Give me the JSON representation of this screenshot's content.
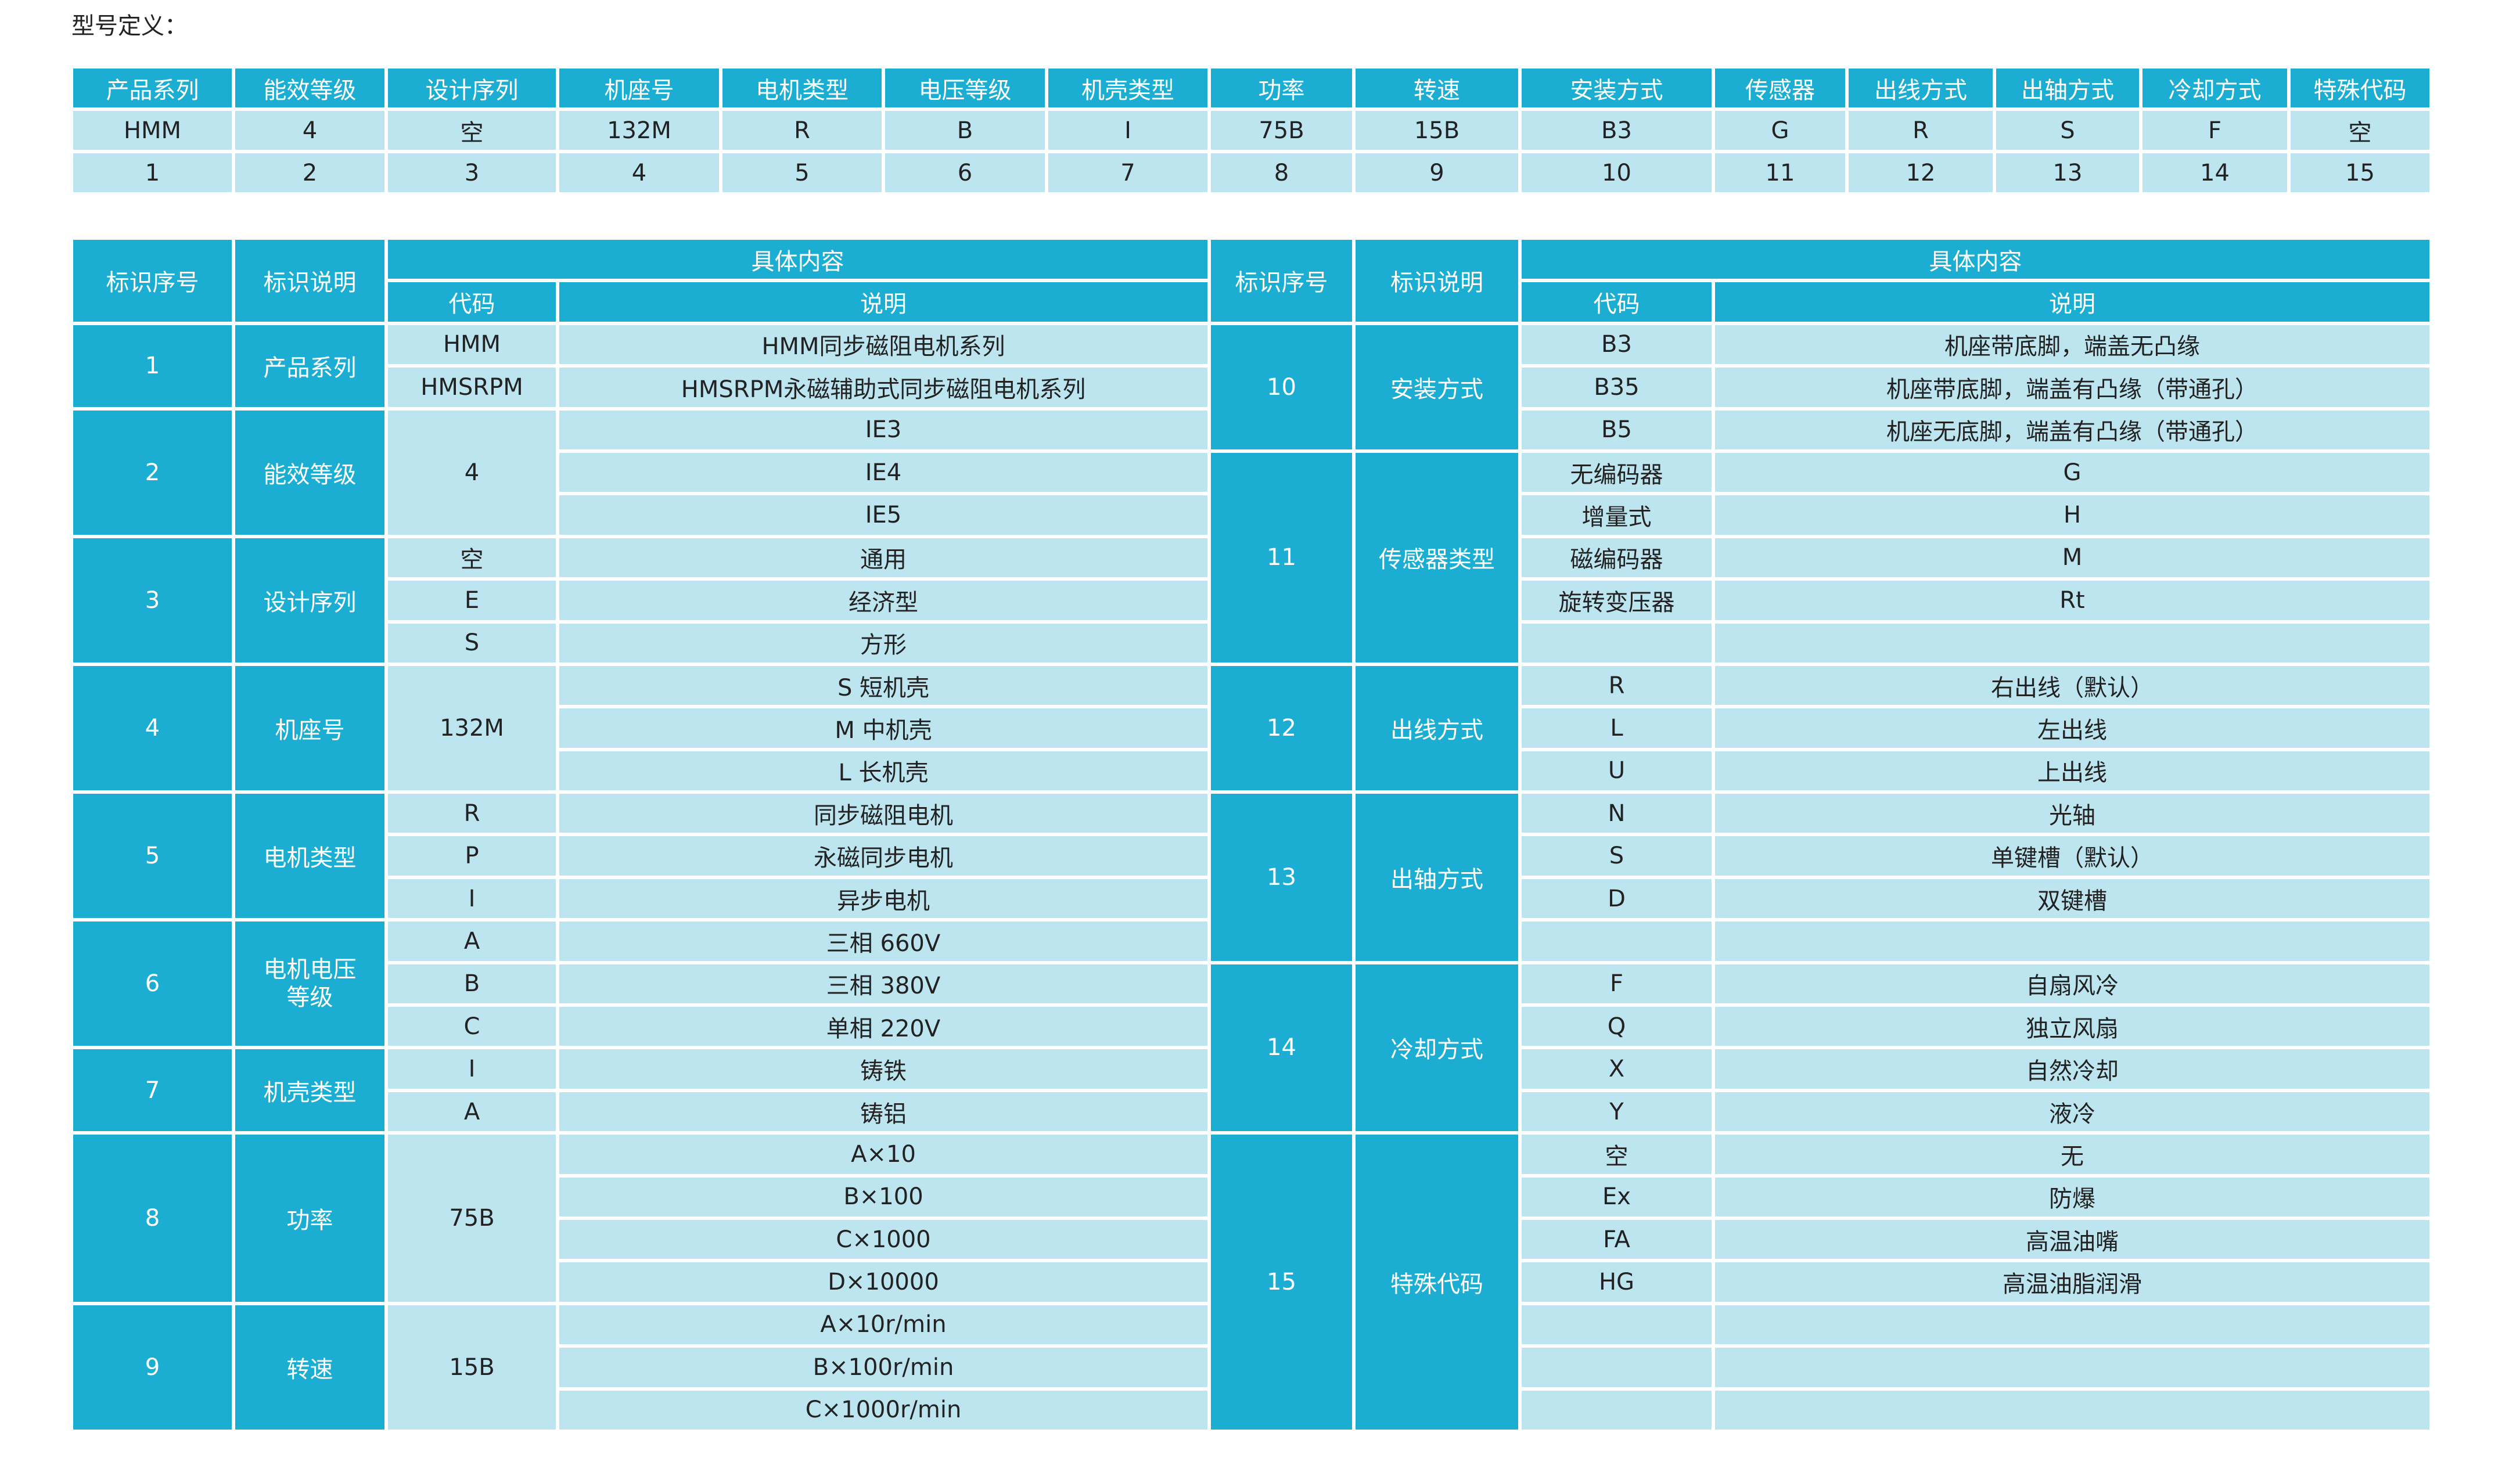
{
  "title": "型号定义：",
  "colors": {
    "header_bg": "#1baed2",
    "cell_bg": "#bde5f0",
    "header_text": "#ffffff"
  },
  "model": {
    "headers": [
      "产品系列",
      "能效等级",
      "设计序列",
      "机座号",
      "电机类型",
      "电压等级",
      "机壳类型",
      "功率",
      "转速",
      "安装方式",
      "传感器",
      "出线方式",
      "出轴方式",
      "冷却方式",
      "特殊代码"
    ],
    "example": [
      "HMM",
      "4",
      "空",
      "132M",
      "R",
      "B",
      "I",
      "75B",
      "15B",
      "B3",
      "G",
      "R",
      "S",
      "F",
      "空"
    ],
    "positions": [
      "1",
      "2",
      "3",
      "4",
      "5",
      "6",
      "7",
      "8",
      "9",
      "10",
      "11",
      "12",
      "13",
      "14",
      "15"
    ]
  },
  "defs": {
    "hdr": {
      "seq": "标识序号",
      "desc": "标识说明",
      "content": "具体内容",
      "code": "代码",
      "expl": "说明"
    },
    "left": [
      {
        "seq": "1",
        "label": "产品系列",
        "rows": [
          {
            "code": "HMM",
            "desc": "HMM同步磁阻电机系列"
          },
          {
            "code": "HMSRPM",
            "desc": "HMSRPM永磁辅助式同步磁阻电机系列"
          }
        ]
      },
      {
        "seq": "2",
        "label": "能效等级",
        "code": "4",
        "rows": [
          {
            "desc": "IE3"
          },
          {
            "desc": "IE4"
          },
          {
            "desc": "IE5"
          }
        ]
      },
      {
        "seq": "3",
        "label": "设计序列",
        "rows": [
          {
            "code": "空",
            "desc": "通用"
          },
          {
            "code": "E",
            "desc": "经济型"
          },
          {
            "code": "S",
            "desc": "方形"
          }
        ]
      },
      {
        "seq": "4",
        "label": "机座号",
        "code": "132M",
        "rows": [
          {
            "desc": "S 短机壳"
          },
          {
            "desc": "M 中机壳"
          },
          {
            "desc": "L 长机壳"
          }
        ]
      },
      {
        "seq": "5",
        "label": "电机类型",
        "rows": [
          {
            "code": "R",
            "desc": "同步磁阻电机"
          },
          {
            "code": "P",
            "desc": "永磁同步电机"
          },
          {
            "code": "I",
            "desc": "异步电机"
          }
        ]
      },
      {
        "seq": "6",
        "label": "电机电压等级",
        "rows": [
          {
            "code": "A",
            "desc": "三相 660V"
          },
          {
            "code": "B",
            "desc": "三相 380V"
          },
          {
            "code": "C",
            "desc": "单相 220V"
          }
        ]
      },
      {
        "seq": "7",
        "label": "机壳类型",
        "rows": [
          {
            "code": "I",
            "desc": "铸铁"
          },
          {
            "code": "A",
            "desc": "铸铝"
          }
        ]
      },
      {
        "seq": "8",
        "label": "功率",
        "code": "75B",
        "rows": [
          {
            "desc": "A×10"
          },
          {
            "desc": "B×100"
          },
          {
            "desc": "C×1000"
          },
          {
            "desc": "D×10000"
          }
        ]
      },
      {
        "seq": "9",
        "label": "转速",
        "code": "15B",
        "rows": [
          {
            "desc": "A×10r/min"
          },
          {
            "desc": "B×100r/min"
          },
          {
            "desc": "C×1000r/min"
          }
        ]
      }
    ],
    "right": [
      {
        "seq": "10",
        "label": "安装方式",
        "rows": [
          {
            "code": "B3",
            "desc": "机座带底脚，端盖无凸缘"
          },
          {
            "code": "B35",
            "desc": "机座带底脚，端盖有凸缘（带通孔）"
          },
          {
            "code": "B5",
            "desc": "机座无底脚，端盖有凸缘（带通孔）"
          }
        ]
      },
      {
        "seq": "11",
        "label": "传感器类型",
        "rows": [
          {
            "code": "无编码器",
            "desc": "G"
          },
          {
            "code": "增量式",
            "desc": "H"
          },
          {
            "code": "磁编码器",
            "desc": "M"
          },
          {
            "code": "旋转变压器",
            "desc": "Rt"
          },
          {
            "code": "",
            "desc": ""
          }
        ]
      },
      {
        "seq": "12",
        "label": "出线方式",
        "rows": [
          {
            "code": "R",
            "desc": "右出线（默认）"
          },
          {
            "code": "L",
            "desc": "左出线"
          },
          {
            "code": "U",
            "desc": "上出线"
          }
        ]
      },
      {
        "seq": "13",
        "label": "出轴方式",
        "rows": [
          {
            "code": "N",
            "desc": "光轴"
          },
          {
            "code": "S",
            "desc": "单键槽（默认）"
          },
          {
            "code": "D",
            "desc": "双键槽"
          },
          {
            "code": "",
            "desc": ""
          }
        ]
      },
      {
        "seq": "14",
        "label": "冷却方式",
        "rows": [
          {
            "code": "F",
            "desc": "自扇风冷"
          },
          {
            "code": "Q",
            "desc": "独立风扇"
          },
          {
            "code": "X",
            "desc": "自然冷却"
          },
          {
            "code": "Y",
            "desc": "液冷"
          }
        ]
      },
      {
        "seq": "15",
        "label": "特殊代码",
        "rows": [
          {
            "code": "空",
            "desc": "无"
          },
          {
            "code": "Ex",
            "desc": "防爆"
          },
          {
            "code": "FA",
            "desc": "高温油嘴"
          },
          {
            "code": "HG",
            "desc": "高温油脂润滑"
          },
          {
            "code": "",
            "desc": ""
          },
          {
            "code": "",
            "desc": ""
          },
          {
            "code": "",
            "desc": ""
          }
        ]
      }
    ]
  }
}
